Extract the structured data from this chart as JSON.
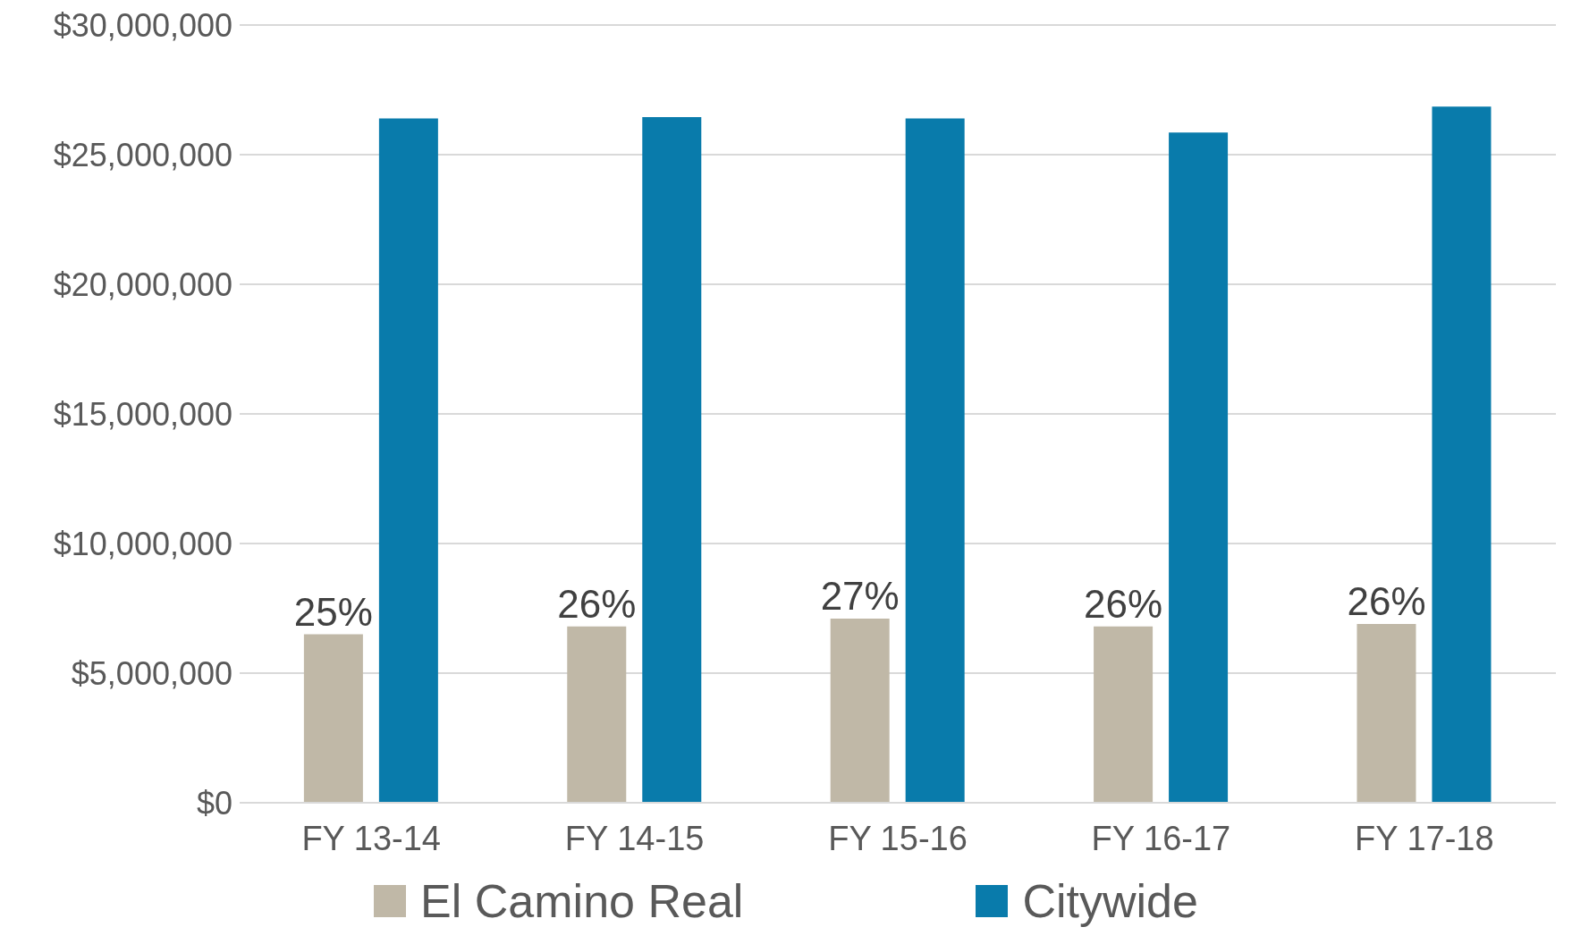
{
  "chart_data": {
    "type": "bar",
    "categories": [
      "FY 13-14",
      "FY 14-15",
      "FY 15-16",
      "FY 16-17",
      "FY 17-18"
    ],
    "series": [
      {
        "name": "El Camino Real",
        "color": "#c0b8a7",
        "values": [
          6500000,
          6800000,
          7100000,
          6800000,
          6900000
        ]
      },
      {
        "name": "Citywide",
        "color": "#097bab",
        "values": [
          26400000,
          26450000,
          26400000,
          25850000,
          26850000
        ]
      }
    ],
    "annotations": [
      "25%",
      "26%",
      "27%",
      "26%",
      "26%"
    ],
    "ylim": [
      0,
      30000000
    ],
    "yticks": [
      {
        "value": 0,
        "label": "$0"
      },
      {
        "value": 5000000,
        "label": "$5,000,000"
      },
      {
        "value": 10000000,
        "label": "$10,000,000"
      },
      {
        "value": 15000000,
        "label": "$15,000,000"
      },
      {
        "value": 20000000,
        "label": "$20,000,000"
      },
      {
        "value": 25000000,
        "label": "$25,000,000"
      },
      {
        "value": 30000000,
        "label": "$30,000,000"
      }
    ],
    "grid": "y",
    "legend": "bottom"
  }
}
